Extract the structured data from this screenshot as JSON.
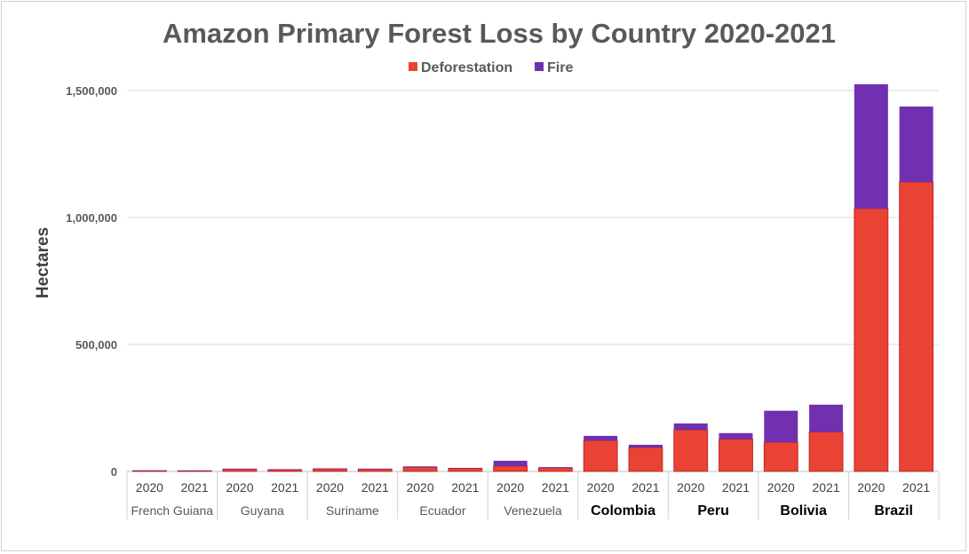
{
  "chart_data": {
    "type": "bar",
    "stacked": true,
    "title": "Amazon Primary Forest Loss by Country 2020-2021",
    "ylabel": "Hectares",
    "xlabel": "",
    "ylim": [
      0,
      1500000
    ],
    "yticks": [
      "0",
      "500,000",
      "1,000,000",
      "1,500,000"
    ],
    "ytick_values": [
      0,
      500000,
      1000000,
      1500000
    ],
    "grid": true,
    "legend": "top",
    "groups": [
      {
        "country": "French Guiana",
        "bold": false
      },
      {
        "country": "Guyana",
        "bold": false
      },
      {
        "country": "Suriname",
        "bold": false
      },
      {
        "country": "Ecuador",
        "bold": false
      },
      {
        "country": "Venezuela",
        "bold": false
      },
      {
        "country": "Colombia",
        "bold": true
      },
      {
        "country": "Peru",
        "bold": true
      },
      {
        "country": "Bolivia",
        "bold": true
      },
      {
        "country": "Brazil",
        "bold": true
      }
    ],
    "years": [
      "2020",
      "2021"
    ],
    "series": [
      {
        "name": "Deforestation",
        "color": "#EA4335",
        "values": [
          3000,
          3000,
          9000,
          7000,
          10000,
          9000,
          17000,
          12000,
          21000,
          14000,
          122000,
          94000,
          164000,
          127000,
          115000,
          155000,
          1035000,
          1140000
        ]
      },
      {
        "name": "Fire",
        "color": "#7030B0",
        "values": [
          1000,
          500,
          2000,
          2000,
          2000,
          2000,
          3000,
          2000,
          21000,
          3000,
          18000,
          11000,
          25000,
          24000,
          124000,
          108000,
          490000,
          297000
        ]
      }
    ]
  }
}
